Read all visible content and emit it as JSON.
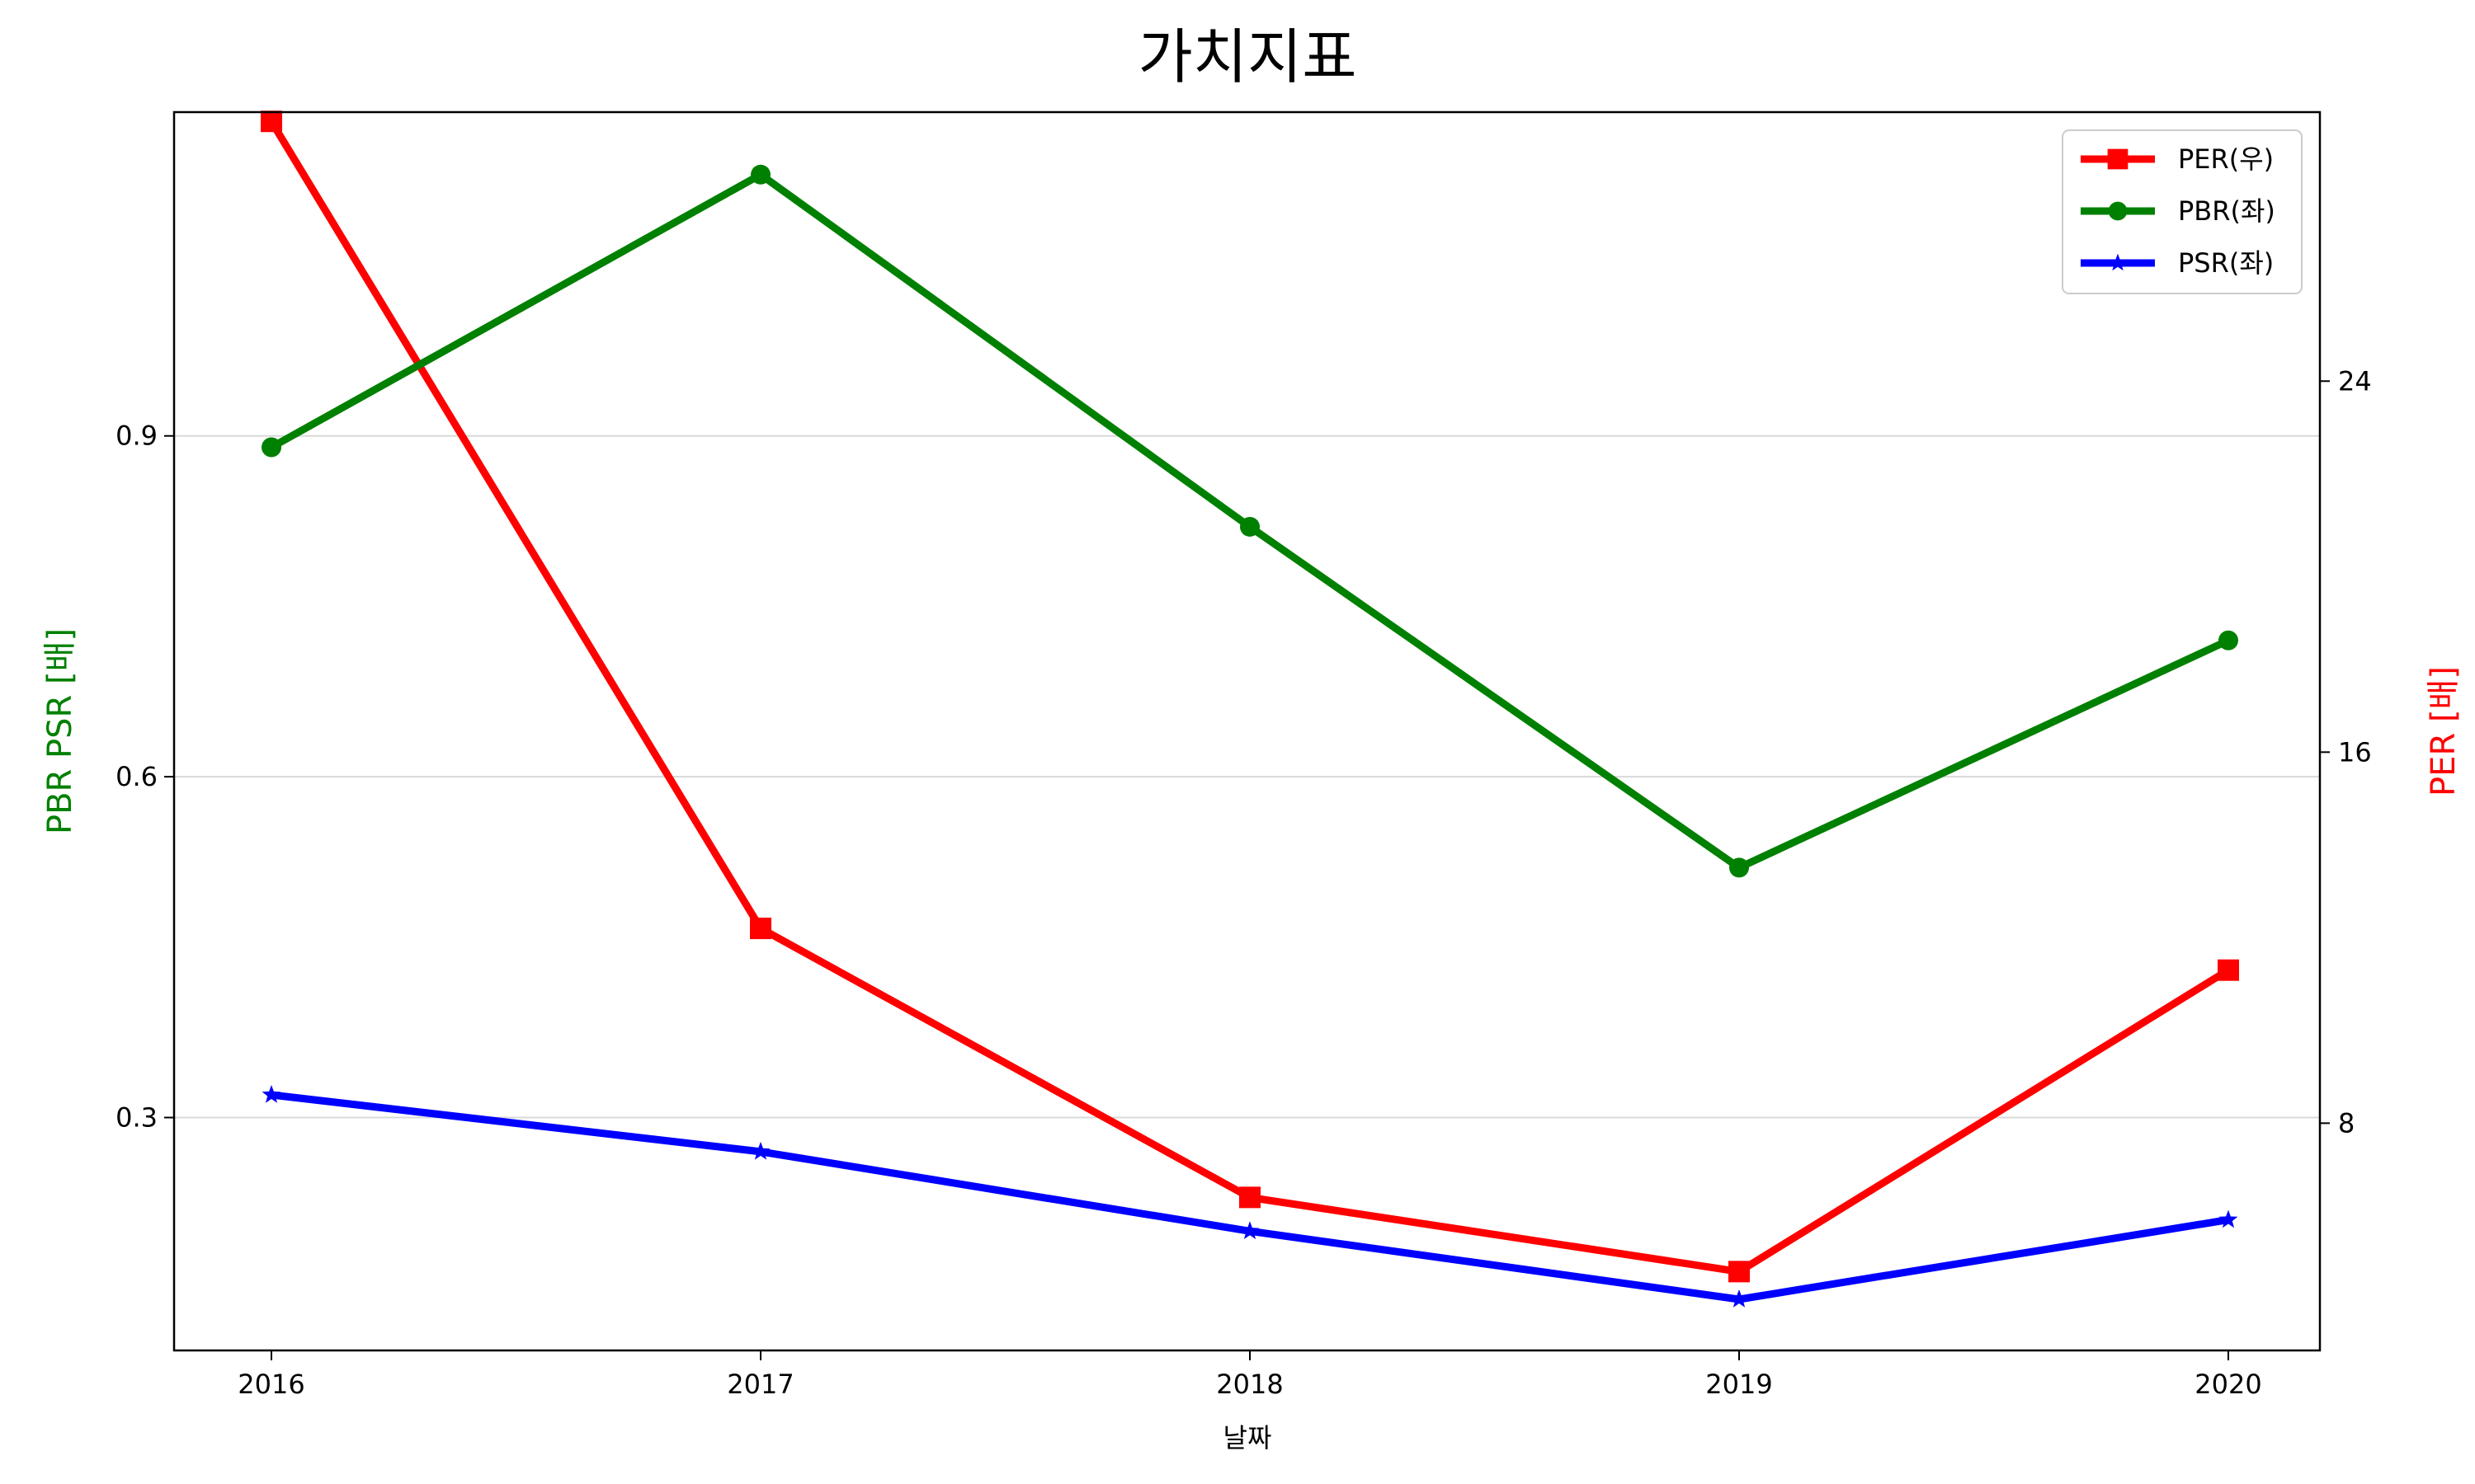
{
  "chart_data": {
    "type": "line",
    "title": "가치지표",
    "xlabel": "날짜",
    "ylabel_left": "PBR PSR [배]",
    "ylabel_right": "PER [배]",
    "categories": [
      "2016",
      "2017",
      "2018",
      "2019",
      "2020"
    ],
    "left_axis": {
      "ylim": [
        0.095,
        1.185
      ],
      "ticks": [
        0.3,
        0.6,
        0.9
      ],
      "tick_labels": [
        "0.3",
        "0.6",
        "0.9"
      ],
      "grid": true
    },
    "right_axis": {
      "ylim": [
        3.1,
        29.8
      ],
      "ticks": [
        8,
        16,
        24
      ],
      "tick_labels": [
        "8",
        "16",
        "24"
      ]
    },
    "series": [
      {
        "name": "PER(우)",
        "axis": "right",
        "color": "#ff0000",
        "marker": "square",
        "values": [
          29.6,
          12.2,
          6.4,
          4.8,
          11.3
        ]
      },
      {
        "name": "PBR(좌)",
        "axis": "left",
        "color": "#008000",
        "marker": "circle",
        "values": [
          0.89,
          1.13,
          0.82,
          0.52,
          0.72
        ]
      },
      {
        "name": "PSR(좌)",
        "axis": "left",
        "color": "#0000ff",
        "marker": "star",
        "values": [
          0.32,
          0.27,
          0.2,
          0.14,
          0.21
        ]
      }
    ],
    "legend": {
      "position": "top-right",
      "entries": [
        "PER(우)",
        "PBR(좌)",
        "PSR(좌)"
      ]
    },
    "colors": {
      "left_label": "#008000",
      "right_label": "#ff0000"
    }
  }
}
